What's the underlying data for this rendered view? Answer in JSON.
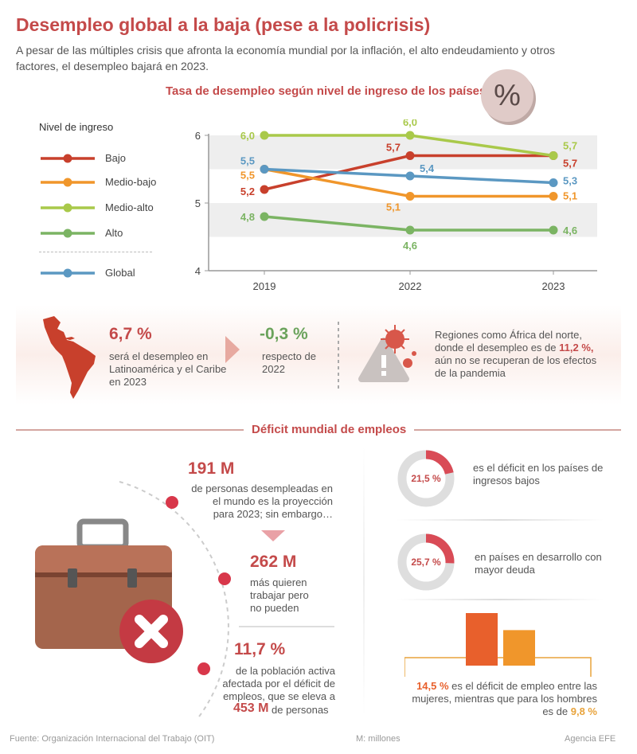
{
  "header": {
    "title": "Desempleo global a la baja (pese a la policrisis)",
    "subtitle": "A pesar de las múltiples crisis que afronta la economía mundial por la inflación, el alto endeudamiento y otros factores, el desempleo bajará en 2023."
  },
  "chart_data": {
    "type": "line",
    "title": "Tasa de desempleo según nivel de ingreso de los países",
    "x": [
      "2019",
      "2022",
      "2023"
    ],
    "ylim": [
      4,
      6
    ],
    "yticks": [
      "4",
      "5",
      "6"
    ],
    "legend_title": "Nivel de ingreso",
    "legend_position": "left",
    "series": [
      {
        "name": "Bajo",
        "color": "#c8402c",
        "values": [
          5.2,
          5.7,
          5.7
        ],
        "labels": [
          "5,2",
          "5,7",
          "5,7"
        ]
      },
      {
        "name": "Medio-bajo",
        "color": "#f0962b",
        "values": [
          5.5,
          5.1,
          5.1
        ],
        "labels": [
          "5,5",
          "5,1",
          "5,1"
        ]
      },
      {
        "name": "Medio-alto",
        "color": "#a9c94a",
        "values": [
          6.0,
          6.0,
          5.7
        ],
        "labels": [
          "6,0",
          "6,0",
          "5,7"
        ]
      },
      {
        "name": "Alto",
        "color": "#7bb463",
        "values": [
          4.8,
          4.6,
          4.6
        ],
        "labels": [
          "4,8",
          "4,6",
          "4,6"
        ]
      },
      {
        "name": "Global",
        "color": "#5b98c2",
        "values": [
          5.5,
          5.4,
          5.3
        ],
        "labels": [
          "5,5",
          "5,4",
          "5,3"
        ]
      }
    ]
  },
  "badge": {
    "symbol": "%"
  },
  "latam": {
    "value": "6,7 %",
    "text": "será el desempleo en Latinoamérica y el Caribe en 2023",
    "change": "-0,3 %",
    "change_text": "respecto de 2022"
  },
  "region": {
    "pre": "Regiones como África del norte, donde el desempleo es de ",
    "value": "11,2 %,",
    "post": " aún no se recuperan de los efectos de la pandemia"
  },
  "deficit": {
    "section_title": "Déficit mundial de empleos",
    "stat1_value": "191 M",
    "stat1_text": "de personas desempleadas en el mundo es la proyección para 2023; sin embargo…",
    "stat2_value": "262 M",
    "stat2_text": "más quieren trabajar pero no pueden",
    "stat3_value": "11,7 %",
    "stat3_text": "de la población activa afectada por el déficit de empleos, que se eleva a",
    "stat3_big": "453 M",
    "stat3_tail": "de personas"
  },
  "donuts": [
    {
      "label": "21,5 %",
      "value": 21.5,
      "text": "es el déficit en los países de ingresos bajos"
    },
    {
      "label": "25,7 %",
      "value": 25.7,
      "text": "en países en desarrollo con mayor deuda"
    }
  ],
  "gender": {
    "women_value": "14,5 %",
    "mid": " es el déficit de empleo entre las mujeres, mientras que para los hombres es de ",
    "men_value": "9,8 %",
    "women_num": 14.5,
    "men_num": 9.8,
    "women_color": "#e8602c",
    "men_color": "#f0962b"
  },
  "footer": {
    "source": "Fuente: Organización Internacional del Trabajo (OIT)",
    "unit": "M: millones",
    "agency": "Agencia EFE"
  }
}
